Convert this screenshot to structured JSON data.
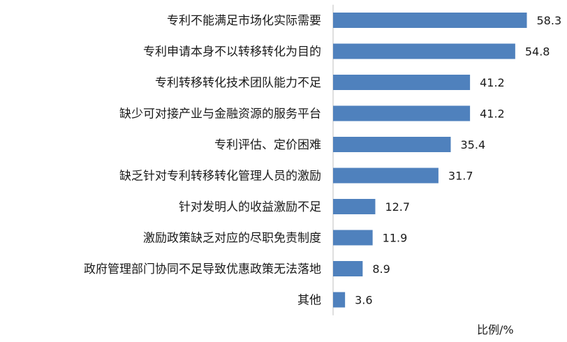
{
  "chart_data": {
    "type": "bar",
    "orientation": "horizontal",
    "categories": [
      "专利不能满足市场化实际需要",
      "专利申请本身不以转移转化为目的",
      "专利转移转化技术团队能力不足",
      "缺少可对接产业与金融资源的服务平台",
      "专利评估、定价困难",
      "缺乏针对专利转移转化管理人员的激励",
      "针对发明人的收益激励不足",
      "激励政策缺乏对应的尽职免责制度",
      "政府管理部门协同不足导致优惠政策无法落地",
      "其他"
    ],
    "values": [
      58.3,
      54.8,
      41.2,
      41.2,
      35.4,
      31.7,
      12.7,
      11.9,
      8.9,
      3.6
    ],
    "value_labels": [
      "58.3",
      "54.8",
      "41.2",
      "41.2",
      "35.4",
      "31.7",
      "12.7",
      "11.9",
      "8.9",
      "3.6"
    ],
    "xlabel": "比例/%",
    "xlim": [
      0,
      60
    ],
    "bar_color": "#4f81bd",
    "grid": false,
    "legend": "none"
  }
}
